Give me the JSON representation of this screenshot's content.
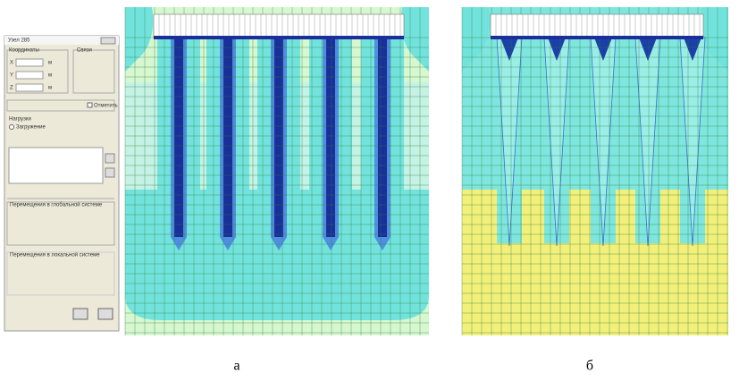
{
  "dialog": {
    "title": "Узел 285",
    "coordinates": "Координаты",
    "links": "Связи",
    "x": "X",
    "y": "Y",
    "z": "Z",
    "unit": "м",
    "mark": "Отметить",
    "loads": "Нагрузки",
    "loading": "Загружение",
    "global": "Перемещения в глобальной системе",
    "local": "Перемещения в локальной системе"
  },
  "captions": {
    "a": "а",
    "b": "б"
  }
}
